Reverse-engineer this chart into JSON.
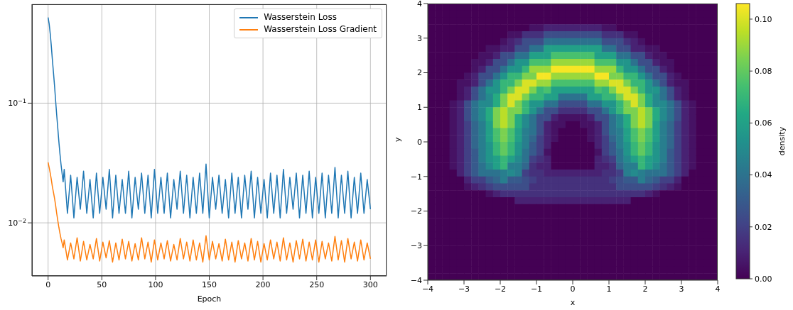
{
  "chart_data": [
    {
      "type": "line",
      "xlabel": "Epoch",
      "log": "y",
      "grid": true,
      "legend": "top right",
      "xlim": [
        -15,
        315
      ],
      "xticks": [
        0,
        50,
        100,
        150,
        200,
        250,
        300
      ],
      "ylim": [
        0.0036,
        0.67
      ],
      "yticks": [
        {
          "value": 0.01,
          "label": "10$^{−2}$"
        },
        {
          "value": 0.1,
          "label": "10$^{−1}$"
        }
      ],
      "x": [
        0,
        1,
        2,
        3,
        4,
        5,
        6,
        7,
        8,
        9,
        10,
        11,
        12,
        13,
        14,
        15,
        18,
        21,
        24,
        27,
        30,
        33,
        36,
        39,
        42,
        45,
        48,
        51,
        54,
        57,
        60,
        63,
        66,
        69,
        72,
        75,
        78,
        81,
        84,
        87,
        90,
        93,
        96,
        99,
        102,
        105,
        108,
        111,
        114,
        117,
        120,
        123,
        126,
        129,
        132,
        135,
        138,
        141,
        144,
        147,
        150,
        153,
        156,
        159,
        162,
        165,
        168,
        171,
        174,
        177,
        180,
        183,
        186,
        189,
        192,
        195,
        198,
        201,
        204,
        207,
        210,
        213,
        216,
        219,
        222,
        225,
        228,
        231,
        234,
        237,
        240,
        243,
        246,
        249,
        252,
        255,
        258,
        261,
        264,
        267,
        270,
        273,
        276,
        279,
        282,
        285,
        288,
        291,
        294,
        297,
        300
      ],
      "series": [
        {
          "name": "Wasserstein Loss",
          "color": "#1f77b4",
          "values": [
            0.52,
            0.46,
            0.38,
            0.3,
            0.23,
            0.18,
            0.14,
            0.105,
            0.08,
            0.062,
            0.048,
            0.038,
            0.031,
            0.026,
            0.022,
            0.028,
            0.012,
            0.025,
            0.011,
            0.024,
            0.013,
            0.027,
            0.012,
            0.023,
            0.011,
            0.026,
            0.012,
            0.024,
            0.013,
            0.028,
            0.011,
            0.025,
            0.012,
            0.023,
            0.012,
            0.027,
            0.011,
            0.024,
            0.013,
            0.026,
            0.012,
            0.025,
            0.011,
            0.028,
            0.012,
            0.024,
            0.012,
            0.026,
            0.011,
            0.023,
            0.013,
            0.027,
            0.012,
            0.025,
            0.011,
            0.024,
            0.012,
            0.026,
            0.012,
            0.031,
            0.011,
            0.024,
            0.013,
            0.025,
            0.012,
            0.023,
            0.011,
            0.026,
            0.012,
            0.024,
            0.011,
            0.025,
            0.013,
            0.027,
            0.011,
            0.024,
            0.012,
            0.023,
            0.011,
            0.026,
            0.012,
            0.025,
            0.011,
            0.028,
            0.012,
            0.024,
            0.013,
            0.026,
            0.011,
            0.025,
            0.012,
            0.027,
            0.011,
            0.024,
            0.012,
            0.026,
            0.011,
            0.025,
            0.012,
            0.029,
            0.011,
            0.025,
            0.012,
            0.027,
            0.011,
            0.024,
            0.012,
            0.026,
            0.012,
            0.023,
            0.013
          ]
        },
        {
          "name": "Wasserstein Loss Gradient",
          "color": "#ff7f0e",
          "values": [
            0.032,
            0.029,
            0.026,
            0.023,
            0.02,
            0.018,
            0.016,
            0.014,
            0.012,
            0.0105,
            0.0092,
            0.0082,
            0.0074,
            0.0068,
            0.0062,
            0.0072,
            0.0049,
            0.0068,
            0.005,
            0.0075,
            0.0048,
            0.007,
            0.0049,
            0.0066,
            0.005,
            0.0074,
            0.0048,
            0.0069,
            0.0051,
            0.0071,
            0.0047,
            0.0068,
            0.0049,
            0.0073,
            0.005,
            0.007,
            0.0048,
            0.0067,
            0.0049,
            0.0075,
            0.005,
            0.0069,
            0.0047,
            0.0072,
            0.0049,
            0.0068,
            0.005,
            0.0071,
            0.0048,
            0.0066,
            0.0049,
            0.0074,
            0.005,
            0.0069,
            0.0048,
            0.0072,
            0.0049,
            0.0068,
            0.0047,
            0.0078,
            0.0049,
            0.007,
            0.005,
            0.0067,
            0.0048,
            0.0073,
            0.0049,
            0.0069,
            0.0047,
            0.0071,
            0.005,
            0.0068,
            0.0048,
            0.0074,
            0.0049,
            0.007,
            0.0047,
            0.0067,
            0.0049,
            0.0072,
            0.005,
            0.0069,
            0.0048,
            0.0075,
            0.0049,
            0.0068,
            0.0047,
            0.0071,
            0.005,
            0.0073,
            0.0048,
            0.0069,
            0.0049,
            0.0072,
            0.0047,
            0.007,
            0.005,
            0.0068,
            0.0048,
            0.0077,
            0.0049,
            0.0071,
            0.0047,
            0.0074,
            0.005,
            0.0069,
            0.0048,
            0.0072,
            0.0049,
            0.0068,
            0.005
          ]
        }
      ]
    },
    {
      "type": "heatmap",
      "xlabel": "x",
      "ylabel": "y",
      "clabel": "density",
      "xlim": [
        -4,
        4
      ],
      "xticks": [
        {
          "value": -4,
          "label": "−4"
        },
        {
          "value": -3,
          "label": "−3"
        },
        {
          "value": -2,
          "label": "−2"
        },
        {
          "value": -1,
          "label": "−1"
        },
        0,
        1,
        2,
        3,
        4
      ],
      "ylim": [
        -4,
        4
      ],
      "yticks": [
        {
          "value": -4,
          "label": "−4"
        },
        {
          "value": -3,
          "label": "−3"
        },
        {
          "value": -2,
          "label": "−2"
        },
        {
          "value": -1,
          "label": "−1"
        },
        0,
        1,
        2,
        3,
        4
      ],
      "clim": [
        0,
        0.106
      ],
      "cticks": [
        {
          "value": 0,
          "label": "0.00"
        },
        {
          "value": 0.02,
          "label": "0.02"
        },
        {
          "value": 0.04,
          "label": "0.04"
        },
        {
          "value": 0.06,
          "label": "0.06"
        },
        {
          "value": 0.08,
          "label": "0.08"
        },
        {
          "value": 0.1,
          "label": "0.10"
        }
      ],
      "cells": [
        [
          0,
          0,
          0,
          0,
          0,
          0,
          0,
          0,
          0,
          0,
          0,
          0,
          0,
          0,
          0,
          0,
          0,
          0,
          0,
          0,
          0,
          0,
          0,
          0,
          0,
          0,
          0,
          0,
          0,
          0,
          0,
          0,
          0,
          0,
          0,
          0,
          0,
          0,
          0,
          0
        ],
        [
          0,
          0,
          0,
          0,
          0,
          0,
          0,
          0,
          0,
          0,
          0,
          0,
          0,
          0,
          0,
          0,
          0,
          0,
          0,
          0,
          0,
          0,
          0,
          0,
          0,
          0,
          0,
          0,
          0,
          0,
          0,
          0,
          0,
          0,
          0,
          0,
          0,
          0,
          0,
          0
        ],
        [
          0,
          0,
          0,
          0,
          0,
          0,
          0,
          0,
          0,
          0,
          0,
          0,
          0,
          0,
          0,
          0,
          0,
          0,
          0,
          0,
          0,
          0,
          0,
          0,
          0,
          0,
          0,
          0,
          0,
          0,
          0,
          0,
          0,
          0,
          0,
          0,
          0,
          0,
          0,
          0
        ],
        [
          0,
          0,
          0,
          0,
          0,
          0,
          0,
          0,
          0,
          0,
          0,
          0,
          0,
          0,
          0.005,
          0.005,
          0.01,
          0.01,
          0.01,
          0.01,
          0.01,
          0.01,
          0.01,
          0.01,
          0.005,
          0.005,
          0,
          0,
          0,
          0,
          0,
          0,
          0,
          0,
          0,
          0,
          0,
          0,
          0,
          0
        ],
        [
          0,
          0,
          0,
          0,
          0,
          0,
          0,
          0,
          0,
          0,
          0,
          0.005,
          0.005,
          0.015,
          0.015,
          0.015,
          0.025,
          0.025,
          0.025,
          0.025,
          0.025,
          0.025,
          0.025,
          0.025,
          0.015,
          0.015,
          0.015,
          0.005,
          0.005,
          0,
          0,
          0,
          0,
          0,
          0,
          0,
          0,
          0,
          0,
          0
        ],
        [
          0,
          0,
          0,
          0,
          0,
          0,
          0,
          0,
          0,
          0,
          0.005,
          0.01,
          0.015,
          0.025,
          0.025,
          0.025,
          0.04,
          0.04,
          0.04,
          0.04,
          0.04,
          0.04,
          0.04,
          0.04,
          0.025,
          0.025,
          0.025,
          0.015,
          0.01,
          0.005,
          0,
          0,
          0,
          0,
          0,
          0,
          0,
          0,
          0,
          0
        ],
        [
          0,
          0,
          0,
          0,
          0,
          0,
          0,
          0,
          0.005,
          0.005,
          0.01,
          0.01,
          0.025,
          0.025,
          0.04,
          0.04,
          0.06,
          0.06,
          0.06,
          0.06,
          0.06,
          0.06,
          0.06,
          0.06,
          0.04,
          0.04,
          0.025,
          0.025,
          0.01,
          0.01,
          0.005,
          0.005,
          0,
          0,
          0,
          0,
          0,
          0,
          0,
          0
        ],
        [
          0,
          0,
          0,
          0,
          0,
          0,
          0,
          0.005,
          0.005,
          0.01,
          0.025,
          0.025,
          0.04,
          0.04,
          0.06,
          0.06,
          0.06,
          0.075,
          0.075,
          0.075,
          0.075,
          0.075,
          0.075,
          0.06,
          0.06,
          0.06,
          0.04,
          0.04,
          0.025,
          0.025,
          0.01,
          0.005,
          0.005,
          0,
          0,
          0,
          0,
          0,
          0,
          0
        ],
        [
          0,
          0,
          0,
          0,
          0,
          0,
          0.005,
          0.005,
          0.01,
          0.025,
          0.025,
          0.04,
          0.055,
          0.055,
          0.075,
          0.075,
          0.075,
          0.09,
          0.09,
          0.09,
          0.09,
          0.09,
          0.09,
          0.075,
          0.075,
          0.075,
          0.055,
          0.055,
          0.04,
          0.025,
          0.025,
          0.01,
          0.005,
          0.005,
          0,
          0,
          0,
          0,
          0,
          0
        ],
        [
          0,
          0,
          0,
          0,
          0,
          0,
          0.005,
          0.01,
          0.025,
          0.025,
          0.04,
          0.055,
          0.055,
          0.07,
          0.09,
          0.09,
          0.09,
          0.105,
          0.105,
          0.105,
          0.105,
          0.105,
          0.105,
          0.09,
          0.09,
          0.09,
          0.07,
          0.055,
          0.055,
          0.04,
          0.025,
          0.025,
          0.01,
          0.005,
          0,
          0,
          0,
          0,
          0,
          0
        ],
        [
          0,
          0,
          0,
          0,
          0,
          0.005,
          0.01,
          0.025,
          0.025,
          0.04,
          0.055,
          0.07,
          0.07,
          0.085,
          0.085,
          0.105,
          0.105,
          0.09,
          0.09,
          0.09,
          0.09,
          0.09,
          0.09,
          0.105,
          0.105,
          0.085,
          0.085,
          0.07,
          0.07,
          0.055,
          0.04,
          0.025,
          0.025,
          0.01,
          0.005,
          0,
          0,
          0,
          0,
          0
        ],
        [
          0,
          0,
          0,
          0,
          0.005,
          0.005,
          0.01,
          0.025,
          0.04,
          0.055,
          0.07,
          0.07,
          0.085,
          0.1,
          0.1,
          0.09,
          0.09,
          0.075,
          0.075,
          0.075,
          0.075,
          0.075,
          0.075,
          0.09,
          0.09,
          0.1,
          0.1,
          0.085,
          0.07,
          0.07,
          0.055,
          0.04,
          0.025,
          0.01,
          0.005,
          0.005,
          0,
          0,
          0,
          0
        ],
        [
          0,
          0,
          0,
          0,
          0.005,
          0.01,
          0.025,
          0.04,
          0.055,
          0.055,
          0.07,
          0.085,
          0.1,
          0.1,
          0.085,
          0.07,
          0.075,
          0.06,
          0.06,
          0.06,
          0.06,
          0.06,
          0.06,
          0.075,
          0.07,
          0.085,
          0.1,
          0.1,
          0.085,
          0.07,
          0.055,
          0.055,
          0.04,
          0.025,
          0.01,
          0.005,
          0,
          0,
          0,
          0
        ],
        [
          0,
          0,
          0,
          0,
          0.005,
          0.01,
          0.025,
          0.04,
          0.05,
          0.065,
          0.085,
          0.1,
          0.1,
          0.085,
          0.07,
          0.07,
          0.06,
          0.06,
          0.04,
          0.04,
          0.04,
          0.04,
          0.06,
          0.06,
          0.07,
          0.07,
          0.085,
          0.1,
          0.1,
          0.085,
          0.065,
          0.05,
          0.04,
          0.025,
          0.01,
          0.005,
          0,
          0,
          0,
          0
        ],
        [
          0,
          0,
          0,
          0.005,
          0.01,
          0.025,
          0.04,
          0.05,
          0.05,
          0.065,
          0.085,
          0.1,
          0.085,
          0.07,
          0.055,
          0.055,
          0.04,
          0.04,
          0.025,
          0.025,
          0.025,
          0.025,
          0.04,
          0.04,
          0.055,
          0.055,
          0.07,
          0.085,
          0.1,
          0.085,
          0.065,
          0.05,
          0.05,
          0.04,
          0.025,
          0.01,
          0.005,
          0,
          0,
          0
        ],
        [
          0,
          0,
          0,
          0.005,
          0.01,
          0.025,
          0.04,
          0.05,
          0.065,
          0.085,
          0.095,
          0.085,
          0.085,
          0.07,
          0.055,
          0.04,
          0.025,
          0.025,
          0.015,
          0.015,
          0.015,
          0.015,
          0.025,
          0.025,
          0.04,
          0.055,
          0.07,
          0.085,
          0.085,
          0.095,
          0.085,
          0.065,
          0.05,
          0.04,
          0.025,
          0.01,
          0.005,
          0,
          0,
          0
        ],
        [
          0,
          0,
          0,
          0.005,
          0.01,
          0.025,
          0.04,
          0.05,
          0.065,
          0.085,
          0.095,
          0.085,
          0.065,
          0.05,
          0.04,
          0.025,
          0.025,
          0.01,
          0.005,
          0.005,
          0.005,
          0.005,
          0.01,
          0.025,
          0.025,
          0.04,
          0.05,
          0.065,
          0.085,
          0.095,
          0.085,
          0.065,
          0.05,
          0.04,
          0.025,
          0.01,
          0.005,
          0,
          0,
          0
        ],
        [
          0,
          0,
          0,
          0.005,
          0.01,
          0.02,
          0.035,
          0.045,
          0.06,
          0.085,
          0.095,
          0.085,
          0.065,
          0.05,
          0.04,
          0.025,
          0.01,
          0.005,
          0.005,
          0,
          0,
          0.005,
          0.005,
          0.01,
          0.025,
          0.04,
          0.05,
          0.065,
          0.085,
          0.095,
          0.085,
          0.06,
          0.045,
          0.035,
          0.02,
          0.01,
          0.005,
          0,
          0,
          0
        ],
        [
          0,
          0,
          0,
          0.005,
          0.01,
          0.02,
          0.035,
          0.045,
          0.06,
          0.075,
          0.085,
          0.075,
          0.06,
          0.045,
          0.04,
          0.025,
          0.01,
          0.005,
          0,
          0,
          0,
          0,
          0.005,
          0.01,
          0.025,
          0.04,
          0.045,
          0.06,
          0.075,
          0.085,
          0.075,
          0.06,
          0.045,
          0.035,
          0.02,
          0.01,
          0.005,
          0,
          0,
          0
        ],
        [
          0,
          0,
          0,
          0.005,
          0.01,
          0.02,
          0.035,
          0.045,
          0.06,
          0.075,
          0.085,
          0.075,
          0.06,
          0.045,
          0.035,
          0.02,
          0.01,
          0.005,
          0,
          0,
          0,
          0,
          0.005,
          0.01,
          0.02,
          0.035,
          0.045,
          0.06,
          0.075,
          0.085,
          0.075,
          0.06,
          0.045,
          0.035,
          0.02,
          0.01,
          0.005,
          0,
          0,
          0
        ],
        [
          0,
          0,
          0,
          0.005,
          0.01,
          0.02,
          0.035,
          0.045,
          0.055,
          0.07,
          0.08,
          0.07,
          0.055,
          0.045,
          0.03,
          0.02,
          0.01,
          0,
          0,
          0,
          0,
          0,
          0,
          0.01,
          0.02,
          0.03,
          0.045,
          0.055,
          0.07,
          0.08,
          0.07,
          0.055,
          0.045,
          0.035,
          0.02,
          0.01,
          0.005,
          0,
          0,
          0
        ],
        [
          0,
          0,
          0,
          0.005,
          0.01,
          0.02,
          0.03,
          0.045,
          0.055,
          0.07,
          0.08,
          0.07,
          0.055,
          0.04,
          0.03,
          0.02,
          0.005,
          0,
          0,
          0,
          0,
          0,
          0,
          0.005,
          0.02,
          0.03,
          0.04,
          0.055,
          0.07,
          0.08,
          0.07,
          0.055,
          0.045,
          0.03,
          0.02,
          0.01,
          0.005,
          0,
          0,
          0
        ],
        [
          0,
          0,
          0,
          0.005,
          0.01,
          0.02,
          0.03,
          0.045,
          0.055,
          0.06,
          0.07,
          0.06,
          0.05,
          0.04,
          0.02,
          0.015,
          0.01,
          0,
          0,
          0,
          0,
          0,
          0,
          0.01,
          0.015,
          0.02,
          0.04,
          0.05,
          0.06,
          0.07,
          0.06,
          0.055,
          0.045,
          0.03,
          0.02,
          0.01,
          0.005,
          0,
          0,
          0
        ],
        [
          0,
          0,
          0,
          0.005,
          0.01,
          0.02,
          0.03,
          0.04,
          0.05,
          0.06,
          0.07,
          0.045,
          0.045,
          0.035,
          0.015,
          0.01,
          0.01,
          0,
          0,
          0,
          0,
          0,
          0,
          0.01,
          0.01,
          0.015,
          0.035,
          0.045,
          0.045,
          0.07,
          0.06,
          0.05,
          0.04,
          0.03,
          0.02,
          0.01,
          0.005,
          0,
          0,
          0
        ],
        [
          0,
          0,
          0,
          0,
          0.01,
          0.02,
          0.03,
          0.04,
          0.04,
          0.04,
          0.045,
          0.05,
          0.045,
          0.02,
          0.015,
          0.015,
          0.01,
          0.01,
          0.01,
          0.01,
          0.01,
          0.01,
          0.01,
          0.01,
          0.015,
          0.015,
          0.02,
          0.045,
          0.05,
          0.045,
          0.04,
          0.04,
          0.04,
          0.03,
          0.02,
          0.01,
          0,
          0,
          0,
          0
        ],
        [
          0,
          0,
          0,
          0,
          0,
          0.01,
          0.02,
          0.02,
          0.03,
          0.035,
          0.045,
          0.03,
          0.03,
          0.025,
          0.02,
          0.015,
          0.015,
          0.015,
          0.015,
          0.015,
          0.015,
          0.015,
          0.015,
          0.015,
          0.015,
          0.02,
          0.025,
          0.03,
          0.03,
          0.045,
          0.035,
          0.03,
          0.02,
          0.02,
          0.01,
          0,
          0,
          0,
          0,
          0
        ],
        [
          0,
          0,
          0,
          0,
          0,
          0.005,
          0.01,
          0.015,
          0.02,
          0.025,
          0.025,
          0.025,
          0.025,
          0.025,
          0.015,
          0.015,
          0.015,
          0.015,
          0.015,
          0.015,
          0.015,
          0.015,
          0.015,
          0.015,
          0.015,
          0.015,
          0.025,
          0.025,
          0.025,
          0.025,
          0.025,
          0.02,
          0.015,
          0.01,
          0.005,
          0,
          0,
          0,
          0,
          0
        ],
        [
          0,
          0,
          0,
          0,
          0,
          0,
          0,
          0,
          0.005,
          0.01,
          0.015,
          0.015,
          0.015,
          0.015,
          0.015,
          0.015,
          0.015,
          0.015,
          0.015,
          0.015,
          0.015,
          0.015,
          0.015,
          0.015,
          0.015,
          0.015,
          0.015,
          0.015,
          0.015,
          0.015,
          0.01,
          0.005,
          0,
          0,
          0,
          0,
          0,
          0,
          0,
          0
        ],
        [
          0,
          0,
          0,
          0,
          0,
          0,
          0,
          0,
          0,
          0,
          0,
          0,
          0.01,
          0.01,
          0.01,
          0.01,
          0.01,
          0.01,
          0.01,
          0.01,
          0.01,
          0.01,
          0.01,
          0.01,
          0.01,
          0.01,
          0.01,
          0.01,
          0,
          0,
          0,
          0,
          0,
          0,
          0,
          0,
          0,
          0,
          0,
          0
        ],
        [
          0,
          0,
          0,
          0,
          0,
          0,
          0,
          0,
          0,
          0,
          0,
          0,
          0,
          0,
          0,
          0,
          0,
          0,
          0,
          0,
          0,
          0,
          0,
          0,
          0,
          0,
          0,
          0,
          0,
          0,
          0,
          0,
          0,
          0,
          0,
          0,
          0,
          0,
          0,
          0
        ],
        [
          0,
          0,
          0,
          0,
          0,
          0,
          0,
          0,
          0,
          0,
          0,
          0,
          0,
          0,
          0,
          0,
          0,
          0,
          0,
          0,
          0,
          0,
          0,
          0,
          0,
          0,
          0,
          0,
          0,
          0,
          0,
          0,
          0,
          0,
          0,
          0,
          0,
          0,
          0,
          0
        ],
        [
          0,
          0,
          0,
          0,
          0,
          0,
          0,
          0,
          0,
          0,
          0,
          0,
          0,
          0,
          0,
          0,
          0,
          0,
          0,
          0,
          0,
          0,
          0,
          0,
          0,
          0,
          0,
          0,
          0,
          0,
          0,
          0,
          0,
          0,
          0,
          0,
          0,
          0,
          0,
          0
        ],
        [
          0,
          0,
          0,
          0,
          0,
          0,
          0,
          0,
          0,
          0,
          0,
          0,
          0,
          0,
          0,
          0,
          0,
          0,
          0,
          0,
          0,
          0,
          0,
          0,
          0,
          0,
          0,
          0,
          0,
          0,
          0,
          0,
          0,
          0,
          0,
          0,
          0,
          0,
          0,
          0
        ],
        [
          0,
          0,
          0,
          0,
          0,
          0,
          0,
          0,
          0,
          0,
          0,
          0,
          0,
          0,
          0,
          0,
          0,
          0,
          0,
          0,
          0,
          0,
          0,
          0,
          0,
          0,
          0,
          0,
          0,
          0,
          0,
          0,
          0,
          0,
          0,
          0,
          0,
          0,
          0,
          0
        ],
        [
          0,
          0,
          0,
          0,
          0,
          0,
          0,
          0,
          0,
          0,
          0,
          0,
          0,
          0,
          0,
          0,
          0,
          0,
          0,
          0,
          0,
          0,
          0,
          0,
          0,
          0,
          0,
          0,
          0,
          0,
          0,
          0,
          0,
          0,
          0,
          0,
          0,
          0,
          0,
          0
        ],
        [
          0,
          0,
          0,
          0,
          0,
          0,
          0,
          0,
          0,
          0,
          0,
          0,
          0,
          0,
          0,
          0,
          0,
          0,
          0,
          0,
          0,
          0,
          0,
          0,
          0,
          0,
          0,
          0,
          0,
          0,
          0,
          0,
          0,
          0,
          0,
          0,
          0,
          0,
          0,
          0
        ],
        [
          0,
          0,
          0,
          0,
          0,
          0,
          0,
          0,
          0,
          0,
          0,
          0,
          0,
          0,
          0,
          0,
          0,
          0,
          0,
          0,
          0,
          0,
          0,
          0,
          0,
          0,
          0,
          0,
          0,
          0,
          0,
          0,
          0,
          0,
          0,
          0,
          0,
          0,
          0,
          0
        ],
        [
          0,
          0,
          0,
          0,
          0,
          0,
          0,
          0,
          0,
          0,
          0,
          0,
          0,
          0,
          0,
          0,
          0,
          0,
          0,
          0,
          0,
          0,
          0,
          0,
          0,
          0,
          0,
          0,
          0,
          0,
          0,
          0,
          0,
          0,
          0,
          0,
          0,
          0,
          0,
          0
        ],
        [
          0,
          0,
          0,
          0,
          0,
          0,
          0,
          0,
          0,
          0,
          0,
          0,
          0,
          0,
          0,
          0,
          0,
          0,
          0,
          0,
          0,
          0,
          0,
          0,
          0,
          0,
          0,
          0,
          0,
          0,
          0,
          0,
          0,
          0,
          0,
          0,
          0,
          0,
          0,
          0
        ],
        [
          0,
          0,
          0,
          0,
          0,
          0,
          0,
          0,
          0,
          0,
          0,
          0,
          0,
          0,
          0,
          0,
          0,
          0,
          0,
          0,
          0,
          0,
          0,
          0,
          0,
          0,
          0,
          0,
          0,
          0,
          0,
          0,
          0,
          0,
          0,
          0,
          0,
          0,
          0,
          0
        ]
      ]
    }
  ]
}
